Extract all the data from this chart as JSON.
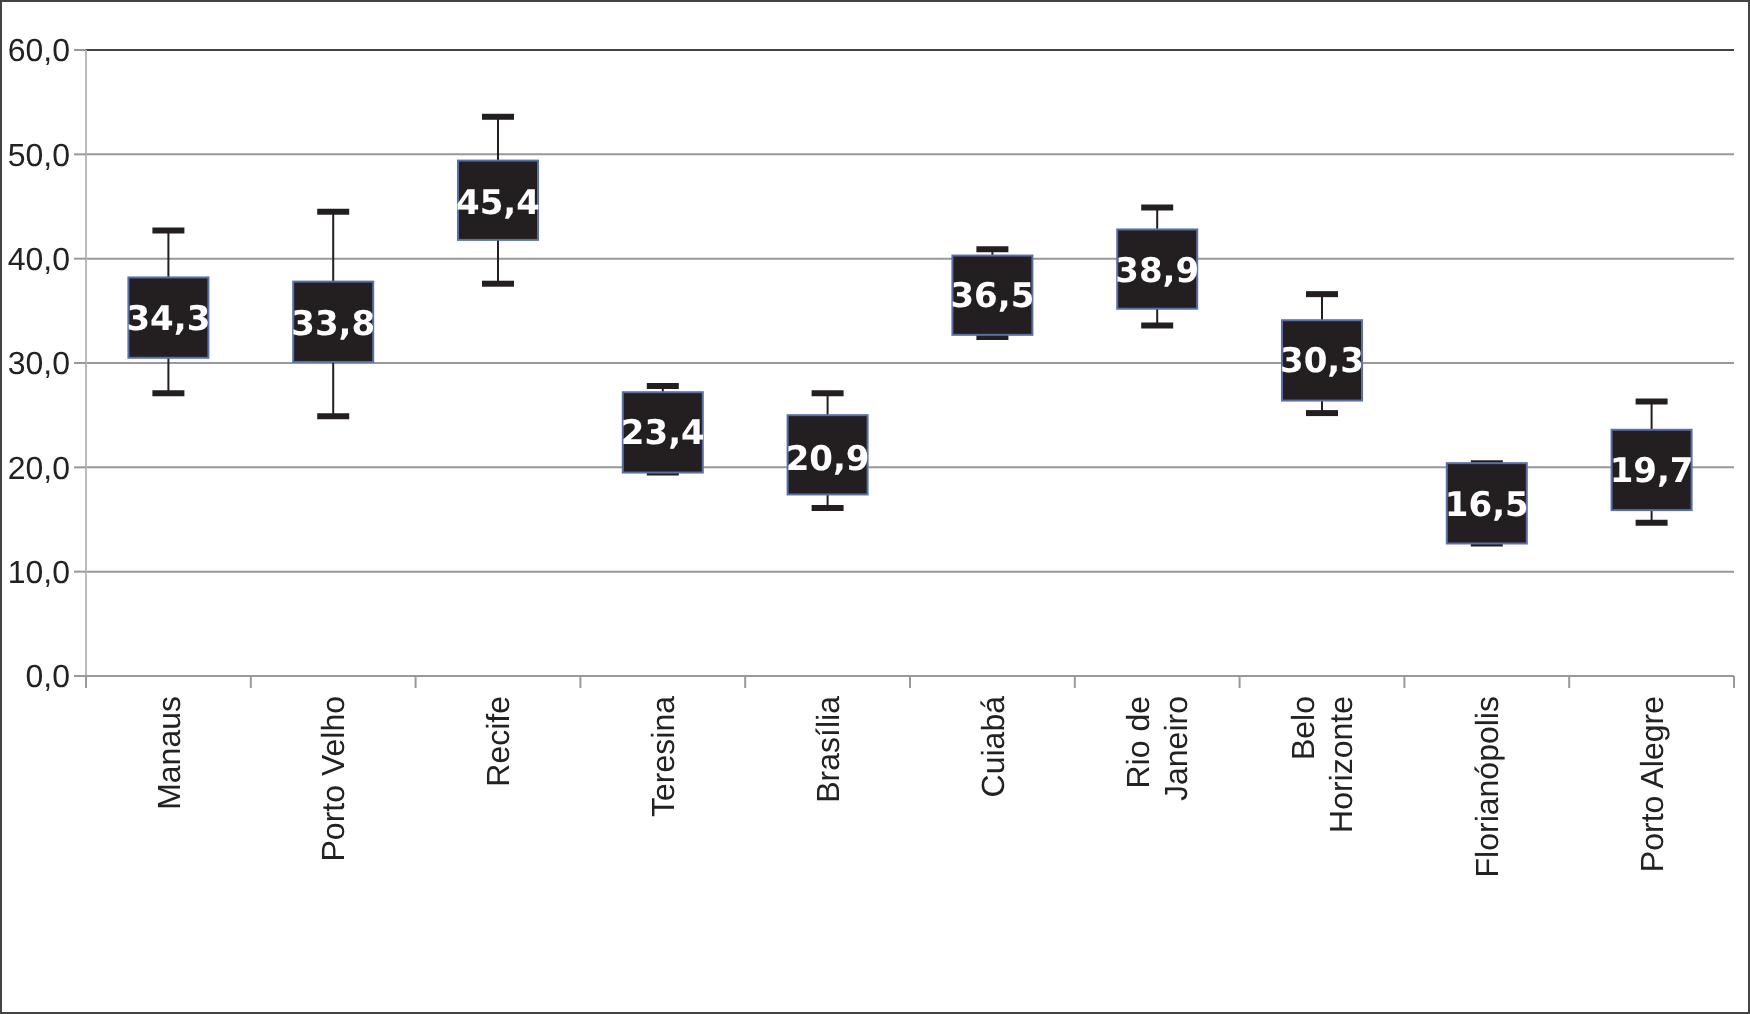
{
  "chart_data": {
    "type": "box",
    "categories": [
      "Manaus",
      "Porto Velho",
      "Recife",
      "Teresina",
      "Brasília",
      "Cuiabá",
      "Rio de Janeiro",
      "Belo Horizonte",
      "Florianópolis",
      "Porto Alegre"
    ],
    "boxes": [
      {
        "low": 27.1,
        "q1": 30.5,
        "median": 34.3,
        "q3": 38.2,
        "high": 42.7
      },
      {
        "low": 24.9,
        "q1": 30.1,
        "median": 33.8,
        "q3": 37.8,
        "high": 44.5
      },
      {
        "low": 37.6,
        "q1": 41.8,
        "median": 45.4,
        "q3": 49.4,
        "high": 53.6
      },
      {
        "low": 19.5,
        "q1": 19.5,
        "median": 23.4,
        "q3": 27.2,
        "high": 27.8
      },
      {
        "low": 16.1,
        "q1": 17.4,
        "median": 20.9,
        "q3": 25.0,
        "high": 27.1
      },
      {
        "low": 32.5,
        "q1": 32.7,
        "median": 36.5,
        "q3": 40.3,
        "high": 40.9
      },
      {
        "low": 33.6,
        "q1": 35.2,
        "median": 38.9,
        "q3": 42.8,
        "high": 44.9
      },
      {
        "low": 25.2,
        "q1": 26.4,
        "median": 30.3,
        "q3": 34.1,
        "high": 36.6
      },
      {
        "low": 12.7,
        "q1": 12.7,
        "median": 16.5,
        "q3": 20.4,
        "high": 20.4
      },
      {
        "low": 14.7,
        "q1": 15.9,
        "median": 19.7,
        "q3": 23.6,
        "high": 26.3
      }
    ],
    "color": "#231f20",
    "value_labels": [
      "34,3",
      "33,8",
      "45,4",
      "23,4",
      "20,9",
      "36,5",
      "38,9",
      "30,3",
      "16,5",
      "19,7"
    ],
    "grid": "y",
    "ylim": [
      0,
      60
    ],
    "yticks": [
      {
        "value": 0,
        "label": "0,0"
      },
      {
        "value": 10,
        "label": "10,0"
      },
      {
        "value": 20,
        "label": "20,0"
      },
      {
        "value": 30,
        "label": "30,0"
      },
      {
        "value": 40,
        "label": "40,0"
      },
      {
        "value": 50,
        "label": "50,0"
      },
      {
        "value": 60,
        "label": "60,0"
      }
    ]
  }
}
